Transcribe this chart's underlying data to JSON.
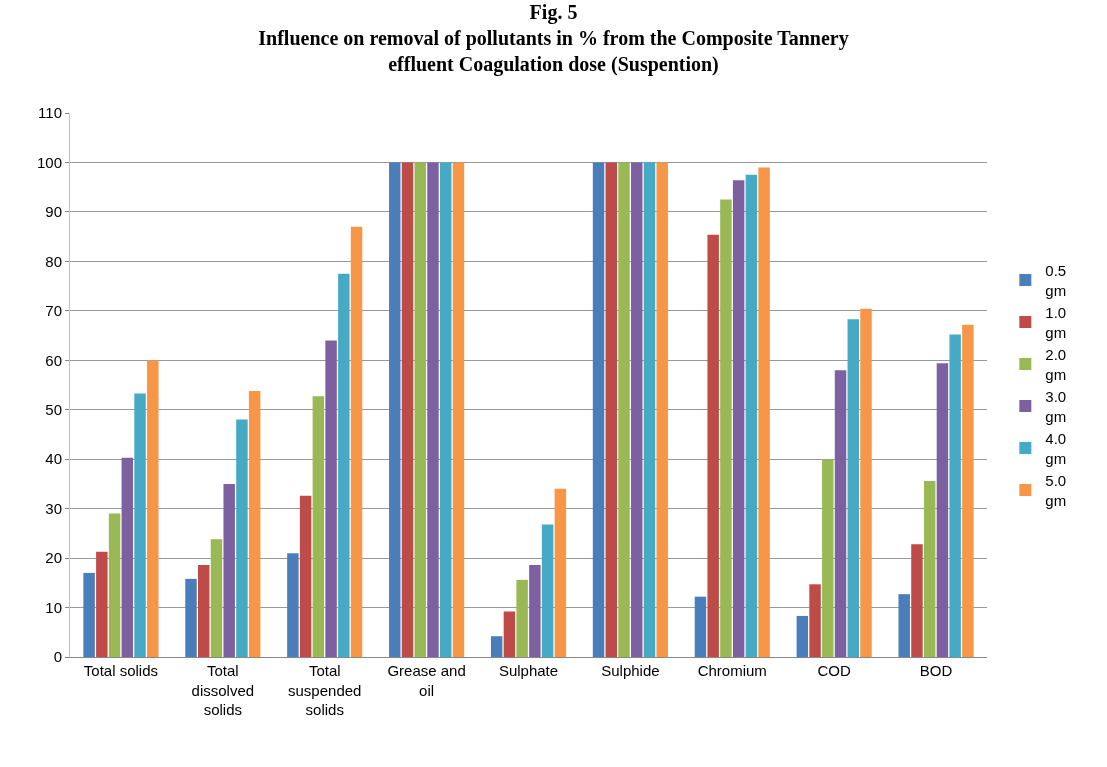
{
  "chart_data": {
    "type": "bar",
    "title": "Fig. 5\nInfluence on removal of pollutants in % from the Composite Tannery\neffluent Coagulation dose (Suspention)",
    "categories": [
      "Total solids",
      "Total dissolved solids",
      "Total suspended solids",
      "Grease and oil",
      "Sulphate",
      "Sulphide",
      "Chromium",
      "COD",
      "BOD"
    ],
    "series": [
      {
        "name": "0.5 gm",
        "color": "#4a7ebb",
        "values": [
          17,
          15.8,
          21,
          100,
          4.2,
          100,
          12.2,
          8.3,
          12.7
        ]
      },
      {
        "name": "1.0 gm",
        "color": "#be4b48",
        "values": [
          21.3,
          18.6,
          32.6,
          100,
          9.2,
          100,
          85.4,
          14.7,
          22.8
        ]
      },
      {
        "name": "2.0 gm",
        "color": "#98b954",
        "values": [
          29,
          23.8,
          52.7,
          100,
          15.6,
          100,
          92.5,
          40,
          35.6
        ]
      },
      {
        "name": "3.0 gm",
        "color": "#7d60a0",
        "values": [
          40.3,
          35,
          64,
          100,
          18.6,
          100,
          96.4,
          58,
          59.4
        ]
      },
      {
        "name": "4.0 gm",
        "color": "#46aac5",
        "values": [
          53.3,
          48,
          77.5,
          100,
          26.8,
          100,
          97.5,
          68.3,
          65.2
        ]
      },
      {
        "name": "5.0 gm",
        "color": "#f79646",
        "values": [
          60,
          53.8,
          87,
          100,
          34,
          100,
          99,
          70.4,
          67.2
        ]
      }
    ],
    "ylim": [
      0,
      110
    ],
    "yticks": [
      0,
      10,
      20,
      30,
      40,
      50,
      60,
      70,
      80,
      90,
      100,
      110
    ],
    "grid": "y",
    "legend": "right"
  }
}
